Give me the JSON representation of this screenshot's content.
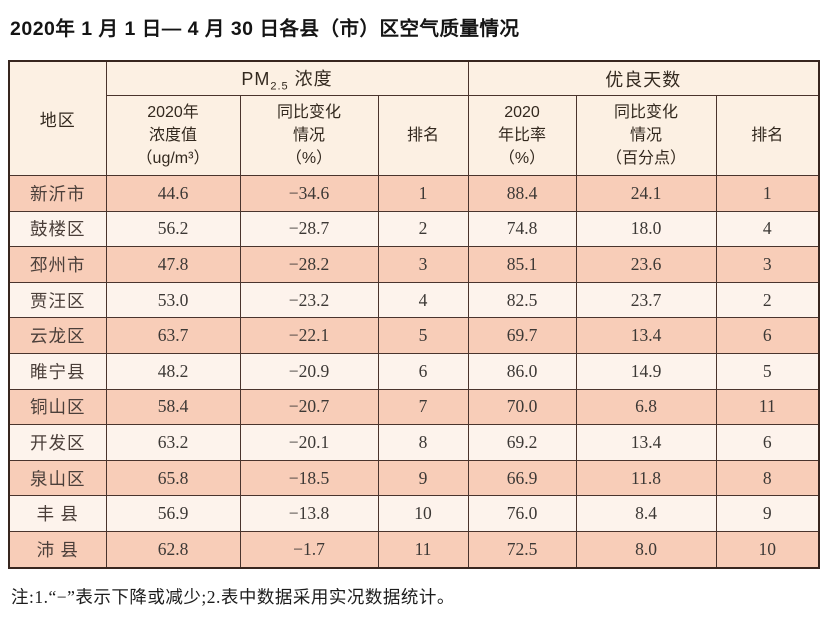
{
  "title": "2020年 1 月 1 日— 4 月 30 日各县（市）区空气质量情况",
  "table": {
    "region_header": "地区",
    "pm_group": {
      "prefix": "PM",
      "sub": "2.5",
      "suffix": " 浓度"
    },
    "good_days_header": "优良天数",
    "sub_headers": {
      "pm_value": [
        "2020年",
        "浓度值",
        "（ug/m³）"
      ],
      "pm_change": [
        "同比变化",
        "情况",
        "（%）"
      ],
      "pm_rank": "排名",
      "gd_ratio": [
        "2020",
        "年比率",
        "（%）"
      ],
      "gd_change": [
        "同比变化",
        "情况",
        "（百分点）"
      ],
      "gd_rank": "排名"
    },
    "rows": [
      [
        "新沂市",
        "44.6",
        "−34.6",
        "1",
        "88.4",
        "24.1",
        "1"
      ],
      [
        "鼓楼区",
        "56.2",
        "−28.7",
        "2",
        "74.8",
        "18.0",
        "4"
      ],
      [
        "邳州市",
        "47.8",
        "−28.2",
        "3",
        "85.1",
        "23.6",
        "3"
      ],
      [
        "贾汪区",
        "53.0",
        "−23.2",
        "4",
        "82.5",
        "23.7",
        "2"
      ],
      [
        "云龙区",
        "63.7",
        "−22.1",
        "5",
        "69.7",
        "13.4",
        "6"
      ],
      [
        "睢宁县",
        "48.2",
        "−20.9",
        "6",
        "86.0",
        "14.9",
        "5"
      ],
      [
        "铜山区",
        "58.4",
        "−20.7",
        "7",
        "70.0",
        "6.8",
        "11"
      ],
      [
        "开发区",
        "63.2",
        "−20.1",
        "8",
        "69.2",
        "13.4",
        "6"
      ],
      [
        "泉山区",
        "65.8",
        "−18.5",
        "9",
        "66.9",
        "11.8",
        "8"
      ],
      [
        "丰 县",
        "56.9",
        "−13.8",
        "10",
        "76.0",
        "8.4",
        "9"
      ],
      [
        "沛 县",
        "62.8",
        "−1.7",
        "11",
        "72.5",
        "8.0",
        "10"
      ]
    ]
  },
  "footnote": "注:1.“−”表示下降或减少;2.表中数据采用实况数据统计。",
  "colors": {
    "row_odd": "#f8cdb8",
    "row_even": "#fdf3ec",
    "header_bg": "#fcf0e3",
    "border": "#4a342d",
    "border_strong": "#38261f"
  }
}
